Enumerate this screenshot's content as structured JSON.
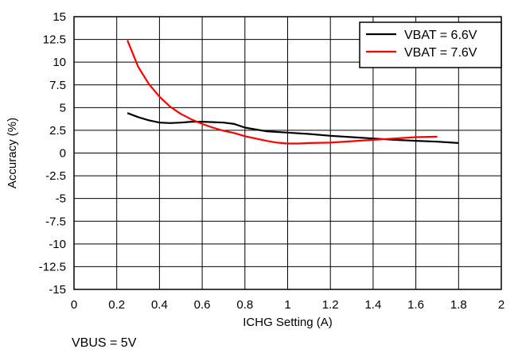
{
  "chart_data": {
    "type": "line",
    "xlabel": "ICHG Setting (A)",
    "ylabel": "Accuracy (%)",
    "xlim": [
      0,
      2
    ],
    "ylim": [
      -15,
      15
    ],
    "x_ticks": [
      "0",
      "0.2",
      "0.4",
      "0.6",
      "0.8",
      "1",
      "1.2",
      "1.4",
      "1.6",
      "1.8",
      "2"
    ],
    "y_ticks": [
      "15",
      "12.5",
      "10",
      "7.5",
      "5",
      "2.5",
      "0",
      "-2.5",
      "-5",
      "-7.5",
      "-10",
      "-12.5",
      "-15"
    ],
    "grid": true,
    "legend_position": "top-right",
    "footnote": "VBUS = 5V",
    "series": [
      {
        "name": "VBAT = 6.6V",
        "color": "#000000",
        "x": [
          0.25,
          0.3,
          0.35,
          0.4,
          0.45,
          0.5,
          0.55,
          0.6,
          0.65,
          0.7,
          0.75,
          0.8,
          0.9,
          1.0,
          1.1,
          1.2,
          1.3,
          1.4,
          1.5,
          1.6,
          1.7,
          1.8
        ],
        "values": [
          4.4,
          3.95,
          3.6,
          3.35,
          3.3,
          3.35,
          3.45,
          3.45,
          3.4,
          3.35,
          3.2,
          2.8,
          2.4,
          2.25,
          2.1,
          1.9,
          1.75,
          1.6,
          1.45,
          1.35,
          1.25,
          1.1
        ]
      },
      {
        "name": "VBAT = 7.6V",
        "color": "#ff0000",
        "x": [
          0.25,
          0.3,
          0.35,
          0.4,
          0.45,
          0.5,
          0.55,
          0.6,
          0.65,
          0.7,
          0.75,
          0.8,
          0.85,
          0.9,
          0.95,
          1.0,
          1.05,
          1.1,
          1.2,
          1.3,
          1.4,
          1.5,
          1.6,
          1.7
        ],
        "values": [
          12.4,
          9.5,
          7.6,
          6.2,
          5.1,
          4.3,
          3.7,
          3.2,
          2.8,
          2.45,
          2.2,
          1.85,
          1.6,
          1.35,
          1.15,
          1.05,
          1.05,
          1.1,
          1.15,
          1.3,
          1.45,
          1.6,
          1.75,
          1.8
        ]
      }
    ]
  }
}
